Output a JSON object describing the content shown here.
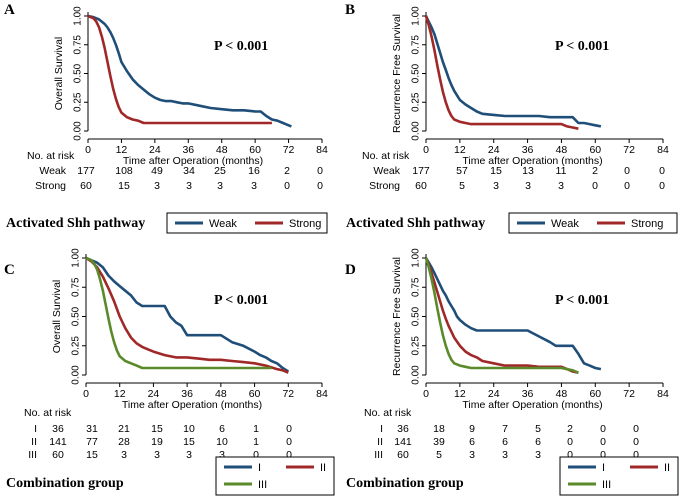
{
  "colors": {
    "blue": "#1f4e79",
    "red": "#a02828",
    "green": "#5a8a2a",
    "axis": "#000000"
  },
  "shared": {
    "xlabel": "Time after Operation (months)",
    "x_ticks": [
      0,
      12,
      24,
      36,
      48,
      60,
      72,
      84
    ],
    "y_ticks": [
      "0.00",
      "0.25",
      "0.50",
      "0.75",
      "1.00"
    ],
    "risk_header": "No. at risk"
  },
  "chart_data": [
    {
      "panel": "A",
      "type": "line",
      "ylabel": "Overall Survival",
      "pvalue": "P < 0.001",
      "xlim": [
        0,
        84
      ],
      "ylim": [
        0,
        1
      ],
      "group_title": "Activated Shh pathway",
      "series": [
        {
          "name": "Weak",
          "color": "blue",
          "x": [
            0,
            2,
            3,
            4,
            5,
            6,
            7,
            8,
            9,
            10,
            11,
            12,
            14,
            16,
            18,
            20,
            22,
            24,
            26,
            28,
            30,
            32,
            34,
            36,
            40,
            44,
            48,
            52,
            56,
            60,
            62,
            64,
            66,
            68,
            70,
            72,
            73
          ],
          "y": [
            1.0,
            0.99,
            0.98,
            0.97,
            0.95,
            0.93,
            0.9,
            0.86,
            0.81,
            0.75,
            0.68,
            0.6,
            0.52,
            0.45,
            0.4,
            0.36,
            0.32,
            0.29,
            0.27,
            0.26,
            0.26,
            0.25,
            0.24,
            0.24,
            0.22,
            0.2,
            0.19,
            0.18,
            0.18,
            0.17,
            0.17,
            0.13,
            0.1,
            0.09,
            0.07,
            0.05,
            0.04
          ],
          "risk": [
            "177",
            "108",
            "49",
            "34",
            "25",
            "16",
            "2",
            "0"
          ]
        },
        {
          "name": "Strong",
          "color": "red",
          "x": [
            0,
            2,
            3,
            4,
            5,
            6,
            7,
            8,
            9,
            10,
            11,
            12,
            14,
            16,
            18,
            20,
            60,
            66
          ],
          "y": [
            1.0,
            0.98,
            0.95,
            0.9,
            0.82,
            0.72,
            0.6,
            0.48,
            0.37,
            0.28,
            0.21,
            0.16,
            0.12,
            0.1,
            0.09,
            0.07,
            0.07,
            0.07
          ],
          "risk": [
            "60",
            "15",
            "3",
            "3",
            "3",
            "3",
            "0",
            "0"
          ]
        }
      ]
    },
    {
      "panel": "B",
      "type": "line",
      "ylabel": "Recurrence Free Survival",
      "pvalue": "P < 0.001",
      "xlim": [
        0,
        84
      ],
      "ylim": [
        0,
        1
      ],
      "group_title": "Activated Shh pathway",
      "series": [
        {
          "name": "Weak",
          "color": "blue",
          "x": [
            0,
            1,
            2,
            3,
            4,
            5,
            6,
            7,
            8,
            9,
            10,
            11,
            12,
            14,
            16,
            18,
            20,
            24,
            28,
            30,
            36,
            40,
            44,
            48,
            52,
            54,
            56,
            58,
            60,
            62
          ],
          "y": [
            1.0,
            0.95,
            0.9,
            0.84,
            0.76,
            0.68,
            0.6,
            0.53,
            0.46,
            0.4,
            0.35,
            0.31,
            0.27,
            0.23,
            0.2,
            0.17,
            0.15,
            0.14,
            0.13,
            0.13,
            0.13,
            0.13,
            0.12,
            0.12,
            0.12,
            0.07,
            0.07,
            0.06,
            0.05,
            0.04
          ],
          "risk": [
            "177",
            "57",
            "15",
            "13",
            "11",
            "2",
            "0",
            "0"
          ]
        },
        {
          "name": "Strong",
          "color": "red",
          "x": [
            0,
            1,
            2,
            3,
            4,
            5,
            6,
            7,
            8,
            9,
            10,
            12,
            14,
            16,
            48,
            50,
            52,
            54
          ],
          "y": [
            1.0,
            0.92,
            0.82,
            0.7,
            0.57,
            0.45,
            0.34,
            0.25,
            0.18,
            0.13,
            0.1,
            0.08,
            0.07,
            0.06,
            0.06,
            0.04,
            0.03,
            0.02
          ],
          "risk": [
            "60",
            "5",
            "3",
            "3",
            "3",
            "0",
            "0",
            "0"
          ]
        }
      ]
    },
    {
      "panel": "C",
      "type": "line",
      "ylabel": "Overall Survival",
      "pvalue": "P < 0.001",
      "xlim": [
        0,
        84
      ],
      "ylim": [
        0,
        1
      ],
      "group_title": "Combination group",
      "series": [
        {
          "name": "I",
          "color": "blue",
          "x": [
            0,
            2,
            4,
            6,
            8,
            10,
            12,
            14,
            16,
            18,
            20,
            24,
            28,
            30,
            32,
            34,
            36,
            40,
            44,
            48,
            52,
            56,
            60,
            62,
            64,
            66,
            68,
            70,
            72
          ],
          "y": [
            1.0,
            0.98,
            0.96,
            0.92,
            0.85,
            0.8,
            0.76,
            0.72,
            0.68,
            0.62,
            0.59,
            0.59,
            0.59,
            0.5,
            0.45,
            0.42,
            0.34,
            0.34,
            0.34,
            0.34,
            0.28,
            0.25,
            0.2,
            0.17,
            0.15,
            0.12,
            0.1,
            0.06,
            0.03
          ],
          "risk": [
            "36",
            "31",
            "21",
            "15",
            "10",
            "6",
            "1",
            "0"
          ]
        },
        {
          "name": "II",
          "color": "red",
          "x": [
            0,
            2,
            4,
            6,
            8,
            10,
            12,
            14,
            16,
            18,
            20,
            22,
            24,
            28,
            32,
            36,
            40,
            44,
            48,
            52,
            56,
            60,
            64,
            68,
            70,
            72
          ],
          "y": [
            1.0,
            0.97,
            0.92,
            0.84,
            0.74,
            0.63,
            0.5,
            0.4,
            0.32,
            0.27,
            0.24,
            0.22,
            0.2,
            0.17,
            0.15,
            0.15,
            0.14,
            0.13,
            0.13,
            0.12,
            0.11,
            0.1,
            0.08,
            0.05,
            0.04,
            0.02
          ],
          "risk": [
            "141",
            "77",
            "28",
            "19",
            "15",
            "10",
            "1",
            "0"
          ]
        },
        {
          "name": "III",
          "color": "green",
          "x": [
            0,
            2,
            3,
            4,
            5,
            6,
            7,
            8,
            9,
            10,
            11,
            12,
            14,
            16,
            18,
            20,
            66
          ],
          "y": [
            1.0,
            0.98,
            0.95,
            0.9,
            0.82,
            0.72,
            0.6,
            0.48,
            0.37,
            0.28,
            0.21,
            0.16,
            0.12,
            0.1,
            0.08,
            0.06,
            0.06
          ],
          "risk": [
            "60",
            "15",
            "3",
            "3",
            "3",
            "3",
            "0",
            "0"
          ]
        }
      ]
    },
    {
      "panel": "D",
      "type": "line",
      "ylabel": "Recurrence Free Survival",
      "pvalue": "P < 0.001",
      "xlim": [
        0,
        84
      ],
      "ylim": [
        0,
        1
      ],
      "group_title": "Combination group",
      "series": [
        {
          "name": "I",
          "color": "blue",
          "x": [
            0,
            1,
            2,
            3,
            4,
            5,
            6,
            7,
            8,
            9,
            10,
            11,
            12,
            14,
            16,
            18,
            24,
            30,
            36,
            40,
            44,
            46,
            48,
            52,
            54,
            56,
            58,
            60,
            62
          ],
          "y": [
            1.0,
            0.96,
            0.92,
            0.87,
            0.82,
            0.77,
            0.72,
            0.68,
            0.63,
            0.59,
            0.55,
            0.5,
            0.47,
            0.43,
            0.4,
            0.38,
            0.38,
            0.38,
            0.38,
            0.33,
            0.28,
            0.25,
            0.25,
            0.25,
            0.18,
            0.1,
            0.08,
            0.06,
            0.05
          ],
          "risk": [
            "36",
            "18",
            "9",
            "7",
            "5",
            "2",
            "0",
            "0"
          ]
        },
        {
          "name": "II",
          "color": "red",
          "x": [
            0,
            1,
            2,
            3,
            4,
            5,
            6,
            7,
            8,
            9,
            10,
            12,
            14,
            16,
            18,
            20,
            24,
            28,
            36,
            40,
            44,
            48,
            50,
            52,
            54
          ],
          "y": [
            1.0,
            0.94,
            0.87,
            0.79,
            0.71,
            0.63,
            0.55,
            0.48,
            0.42,
            0.37,
            0.32,
            0.25,
            0.2,
            0.17,
            0.15,
            0.12,
            0.1,
            0.08,
            0.08,
            0.07,
            0.07,
            0.07,
            0.05,
            0.03,
            0.02
          ],
          "risk": [
            "141",
            "39",
            "6",
            "6",
            "6",
            "0",
            "0",
            "0"
          ]
        },
        {
          "name": "III",
          "color": "green",
          "x": [
            0,
            1,
            2,
            3,
            4,
            5,
            6,
            7,
            8,
            9,
            10,
            12,
            14,
            16,
            48,
            52,
            54
          ],
          "y": [
            1.0,
            0.92,
            0.82,
            0.7,
            0.57,
            0.45,
            0.34,
            0.25,
            0.18,
            0.13,
            0.1,
            0.08,
            0.07,
            0.06,
            0.06,
            0.04,
            0.02
          ],
          "risk": [
            "60",
            "5",
            "3",
            "3",
            "3",
            "0",
            "0",
            "0"
          ]
        }
      ]
    }
  ]
}
